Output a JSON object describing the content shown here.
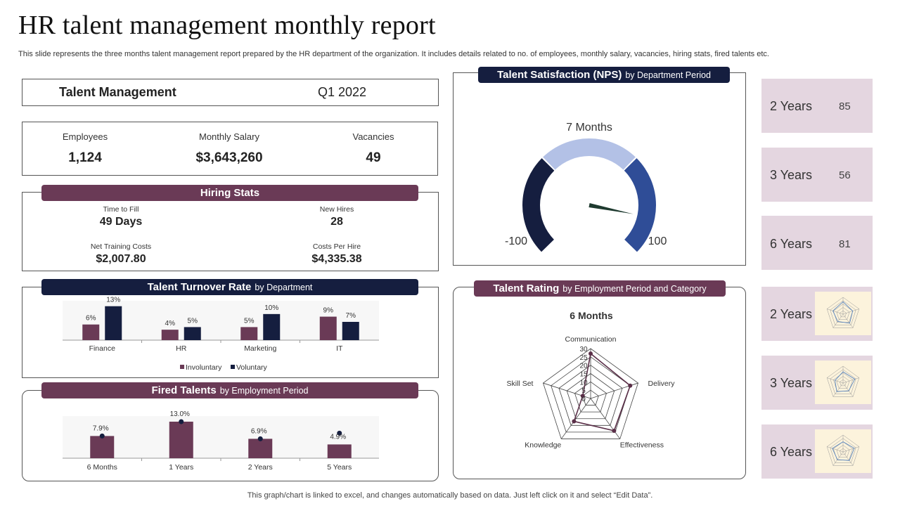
{
  "header": {
    "title": "HR talent management monthly report",
    "subtitle": "This slide represents the three months talent management report prepared by the HR department of the organization. It includes details related to no. of employees, monthly salary, vacancies, hiring stats, fired talents etc."
  },
  "talent_management": {
    "label": "Talent Management",
    "period": "Q1 2022"
  },
  "kpis": [
    {
      "label": "Employees",
      "value": "1,124"
    },
    {
      "label": "Monthly Salary",
      "value": "$3,643,260"
    },
    {
      "label": "Vacancies",
      "value": "49"
    }
  ],
  "hiring_stats": {
    "title": "Hiring Stats",
    "items": [
      {
        "label": "Time to Fill",
        "value": "49 Days"
      },
      {
        "label": "New Hires",
        "value": "28"
      },
      {
        "label": "Net Training Costs",
        "value": "$2,007.80"
      },
      {
        "label": "Costs Per Hire",
        "value": "$4,335.38"
      }
    ]
  },
  "turnover": {
    "title": "Talent Turnover Rate",
    "title_sub": "by Department",
    "chart_data": {
      "type": "bar",
      "categories": [
        "Finance",
        "HR",
        "Marketing",
        "IT"
      ],
      "series": [
        {
          "name": "Involuntary",
          "values": [
            6,
            4,
            5,
            9
          ],
          "labels": [
            "6%",
            "4%",
            "5%",
            "9%"
          ],
          "color": "#6a3a56"
        },
        {
          "name": "Voluntary",
          "values": [
            13,
            5,
            10,
            7
          ],
          "labels": [
            "13%",
            "5%",
            "10%",
            "7%"
          ],
          "color": "#151e3f"
        }
      ],
      "ylim": [
        0,
        14
      ],
      "legend": "bottom"
    }
  },
  "fired": {
    "title": "Fired Talents",
    "title_sub": "by Employment Period",
    "chart_data": {
      "type": "bar",
      "categories": [
        "6 Months",
        "1 Years",
        "2 Years",
        "5 Years"
      ],
      "values": [
        7.9,
        13.0,
        6.9,
        4.9
      ],
      "labels": [
        "7.9%",
        "13.0%",
        "6.9%",
        "4.9%"
      ],
      "color": "#6a3a56",
      "marker_color": "#151e3f",
      "ylim": [
        0,
        14
      ]
    }
  },
  "nps": {
    "title": "Talent Satisfaction (NPS)",
    "title_sub": "by Department  Period",
    "chart_data": {
      "type": "gauge",
      "label": "7 Months",
      "min": -100,
      "max": 100,
      "min_label": "-100",
      "max_label": "100",
      "value": 75,
      "segments": [
        {
          "from": -100,
          "to": -33,
          "color": "#151e3f"
        },
        {
          "from": -33,
          "to": 33,
          "color": "#b3c1e6"
        },
        {
          "from": 33,
          "to": 100,
          "color": "#2f4d97"
        }
      ]
    }
  },
  "rating": {
    "title": "Talent Rating",
    "title_sub": "by Employment Period and Category",
    "chart_data": {
      "type": "radar",
      "title": "6 Months",
      "axes": [
        "Communication",
        "Delivery",
        "Effectiveness",
        "Knowledge",
        "Skill Set"
      ],
      "values": [
        27,
        25,
        24,
        17,
        5
      ],
      "ticks": [
        0,
        5,
        10,
        15,
        20,
        25,
        30
      ],
      "tick_labels": [
        "0",
        "5",
        "10",
        "15",
        "20",
        "25",
        "30"
      ],
      "max": 30,
      "color": "#5a2f48"
    }
  },
  "side_cards": [
    {
      "label": "2 Years",
      "value": "85"
    },
    {
      "label": "3 Years",
      "value": "56"
    },
    {
      "label": "6 Years",
      "value": "81"
    },
    {
      "label": "2 Years",
      "radar": [
        22,
        18,
        20,
        16,
        19
      ]
    },
    {
      "label": "3 Years",
      "radar": [
        20,
        22,
        17,
        19,
        15
      ]
    },
    {
      "label": "6 Years",
      "radar": [
        18,
        21,
        19,
        17,
        20
      ]
    }
  ],
  "footer": "This graph/chart is linked to excel,  and changes automatically based on data. Just left click on it and select “Edit Data”."
}
